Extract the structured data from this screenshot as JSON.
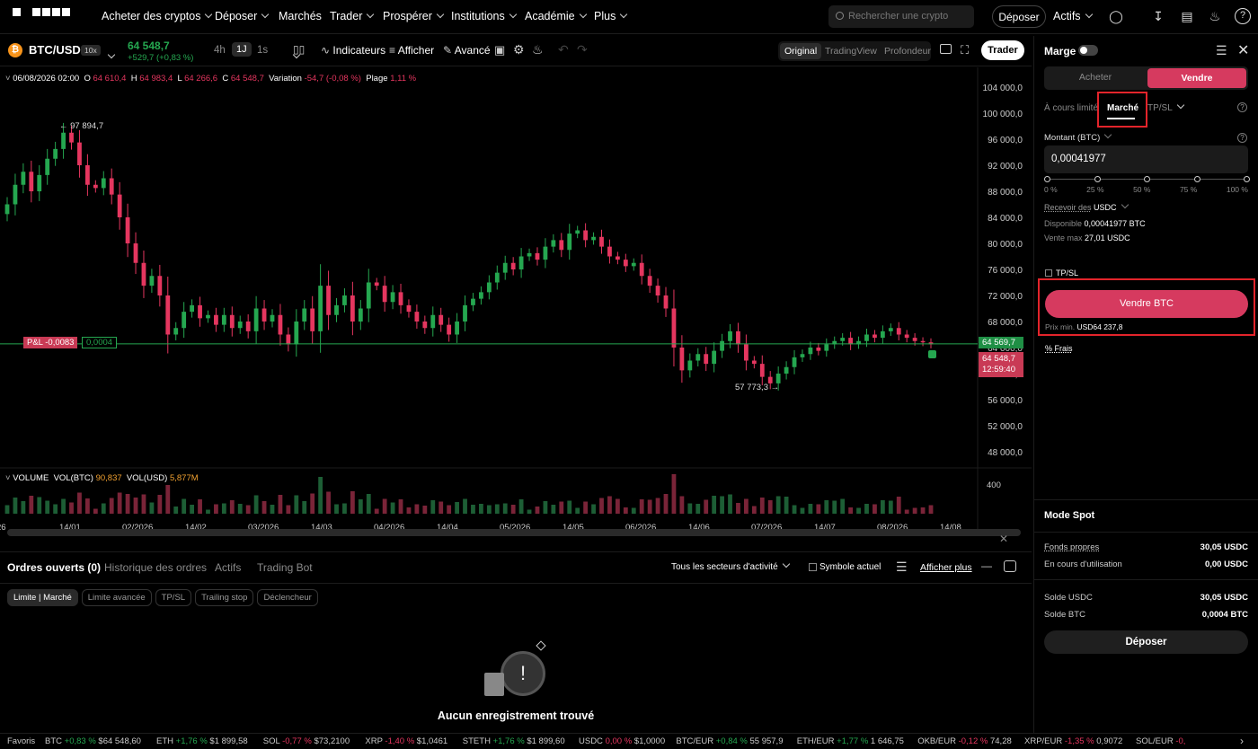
{
  "nav": {
    "items": [
      "Acheter des cryptos",
      "Déposer",
      "Marchés",
      "Trader",
      "Prospérer",
      "Institutions",
      "Académie",
      "Plus"
    ],
    "search_placeholder": "Rechercher une crypto",
    "deposit": "Déposer",
    "assets": "Actifs"
  },
  "ticker": {
    "pair": "BTC/USD",
    "leverage": "10x",
    "price": "64 548,7",
    "change": "+529,7 (+0,83 %)",
    "intervals": [
      "4h",
      "1J",
      "1s"
    ],
    "indicators": "Indicateurs",
    "show": "Afficher",
    "advanced": "Avancé",
    "views": [
      "Original",
      "TradingView",
      "Profondeur"
    ],
    "trade": "Trader"
  },
  "ohlc": {
    "date": "06/08/2026 02:00",
    "o_label": "O",
    "o": "64 610,4",
    "h_label": "H",
    "h": "64 983,4",
    "l_label": "L",
    "l": "64 266,6",
    "c_label": "C",
    "c": "64 548,7",
    "var_label": "Variation",
    "var": "-54,7 (-0,08 %)",
    "range_label": "Plage",
    "range": "1,11 %"
  },
  "chart_data": {
    "type": "candlestick",
    "x_labels": [
      "26",
      "14/01",
      "02/2026",
      "14/02",
      "03/2026",
      "14/03",
      "04/2026",
      "14/04",
      "05/2026",
      "14/05",
      "06/2026",
      "14/06",
      "07/2026",
      "14/07",
      "08/2026",
      "14/08"
    ],
    "y_ticks": [
      "104 000,0",
      "100 000,0",
      "96 000,0",
      "92 000,0",
      "88 000,0",
      "84 000,0",
      "80 000,0",
      "76 000,0",
      "72 000,0",
      "68 000,0",
      "64 000,0",
      "60 000,0",
      "56 000,0",
      "52 000,0",
      "48 000,0"
    ],
    "ylim": [
      46000,
      106000
    ],
    "high_label": "97 894,7",
    "low_label": "57 773,3",
    "position_price": "64 569,7",
    "last_price": "64 548,7",
    "countdown": "12:59:40",
    "pnl_label": "P&L -0,0083",
    "pnl_size": "0,0004",
    "volume_legend": "VOLUME",
    "vol_btc_label": "VOL(BTC)",
    "vol_btc": "90,837",
    "vol_usd_label": "VOL(USD)",
    "vol_usd": "5,877M",
    "volume_tick": "400",
    "closes": [
      86000,
      89000,
      91000,
      88000,
      90500,
      93000,
      94500,
      97000,
      95500,
      92000,
      89000,
      88500,
      90000,
      87500,
      84000,
      80000,
      77000,
      73500,
      75000,
      72000,
      66000,
      67000,
      69500,
      70500,
      68500,
      69000,
      67500,
      69000,
      67000,
      68000,
      66500,
      70000,
      68000,
      69000,
      66000,
      64500,
      68000,
      70000,
      66500,
      73500,
      69000,
      70500,
      72000,
      68000,
      70000,
      74000,
      73500,
      71000,
      72500,
      70500,
      69500,
      68000,
      67000,
      69000,
      67500,
      66000,
      68000,
      70500,
      71500,
      72500,
      74000,
      75500,
      77000,
      76000,
      78000,
      78500,
      77500,
      79500,
      80500,
      79000,
      81500,
      82000,
      80500,
      81000,
      79500,
      78000,
      77500,
      76500,
      77000,
      75000,
      73500,
      72000,
      70000,
      64000,
      60500,
      62000,
      63000,
      61500,
      63500,
      65000,
      66500,
      64500,
      62000,
      61500,
      59500,
      58500,
      60000,
      61000,
      62500,
      63000,
      64000,
      63500,
      64500,
      65000,
      65500,
      64500,
      65000,
      66000,
      65500,
      66500,
      67000,
      66000,
      65500,
      65000,
      64800,
      64500
    ]
  },
  "tabs": {
    "open_orders": "Ordres ouverts (0)",
    "history": "Historique des ordres",
    "assets": "Actifs",
    "bot": "Trading Bot",
    "sectors": "Tous les secteurs d'activité",
    "current_symbol": "Symbole actuel",
    "show_more": "Afficher plus",
    "filters": [
      "Limite | Marché",
      "Limite avancée",
      "TP/SL",
      "Trailing stop",
      "Déclencheur"
    ],
    "empty": "Aucun enregistrement trouvé"
  },
  "panel": {
    "margin": "Marge",
    "buy": "Acheter",
    "sell": "Vendre",
    "order_types": [
      "À cours limité",
      "Marché",
      "TP/SL"
    ],
    "amount_label": "Montant (BTC)",
    "amount_value": "0,00041977",
    "slider_marks": [
      "0 %",
      "25 %",
      "50 %",
      "75 %",
      "100 %"
    ],
    "receive_label": "Recevoir des",
    "receive_coin": "USDC",
    "available_label": "Disponible",
    "available_value": "0,00041977 BTC",
    "max_sell_label": "Vente max",
    "max_sell_value": "27,01 USDC",
    "tpsl": "TP/SL",
    "sell_button": "Vendre BTC",
    "min_price_label": "Prix min.",
    "min_price_value": "USD64 237,8",
    "fees": "Frais",
    "spot_title": "Mode Spot",
    "equity_label": "Fonds propres",
    "equity_value": "30,05 USDC",
    "in_use_label": "En cours d'utilisation",
    "in_use_value": "0,00 USDC",
    "usdc_balance_label": "Solde USDC",
    "usdc_balance_value": "30,05 USDC",
    "btc_balance_label": "Solde BTC",
    "btc_balance_value": "0,0004 BTC",
    "deposit": "Déposer"
  },
  "footer": {
    "favorites": "Favoris",
    "items": [
      {
        "s": "BTC",
        "c": "+0,83 %",
        "p": "$64 548,60",
        "up": true
      },
      {
        "s": "ETH",
        "c": "+1,76 %",
        "p": "$1 899,58",
        "up": true
      },
      {
        "s": "SOL",
        "c": "-0,77 %",
        "p": "$73,2100",
        "up": false
      },
      {
        "s": "XRP",
        "c": "-1,40 %",
        "p": "$1,0461",
        "up": false
      },
      {
        "s": "STETH",
        "c": "+1,76 %",
        "p": "$1 899,60",
        "up": true
      },
      {
        "s": "USDC",
        "c": "0,00 %",
        "p": "$1,0000",
        "up": false
      },
      {
        "s": "BTC/EUR",
        "c": "+0,84 %",
        "p": "55 957,9",
        "up": true
      },
      {
        "s": "ETH/EUR",
        "c": "+1,77 %",
        "p": "1 646,75",
        "up": true
      },
      {
        "s": "OKB/EUR",
        "c": "-0,12 %",
        "p": "74,28",
        "up": false
      },
      {
        "s": "XRP/EUR",
        "c": "-1,35 %",
        "p": "0,9072",
        "up": false
      },
      {
        "s": "SOL/EUR",
        "c": "-0,",
        "p": "",
        "up": false
      }
    ]
  }
}
